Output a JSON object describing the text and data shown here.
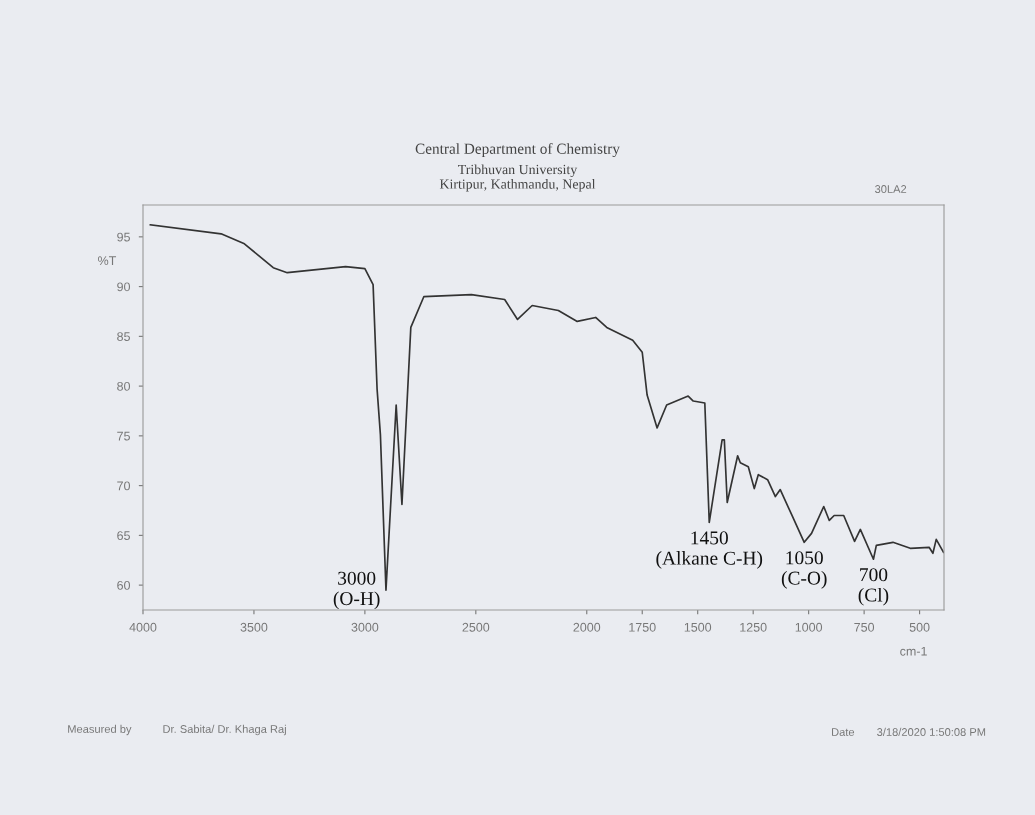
{
  "chart_data": {
    "type": "line",
    "title": "Central Department of Chemistry",
    "subtitle": "Tribhuvan University\nKirtipur, Kathmandu, Nepal",
    "xlabel": "cm-1",
    "ylabel": "%T",
    "series": [
      {
        "color": "#333333",
        "x": [
          3967,
          3648,
          3543,
          3413,
          3350,
          3087,
          3000,
          2963,
          2945,
          2930,
          2905,
          2859,
          2833,
          2793,
          2734,
          2520,
          2370,
          2312,
          2246,
          2128,
          2043,
          1960,
          1910,
          1793,
          1750,
          1728,
          1683,
          1640,
          1543,
          1520,
          1468,
          1448,
          1390,
          1380,
          1367,
          1320,
          1308,
          1272,
          1245,
          1227,
          1185,
          1150,
          1128,
          1075,
          1020,
          987,
          932,
          907,
          885,
          842,
          793,
          767,
          708,
          695,
          620,
          542,
          457,
          440,
          425,
          392
        ],
        "values": [
          96.2,
          95.3,
          94.3,
          91.9,
          91.4,
          92.0,
          91.8,
          90.2,
          79.7,
          75.1,
          59.5,
          78.1,
          68.1,
          85.9,
          89.0,
          89.2,
          88.7,
          86.7,
          88.1,
          87.6,
          86.5,
          86.9,
          85.9,
          84.6,
          83.4,
          79.1,
          75.8,
          78.1,
          79.0,
          78.5,
          78.3,
          66.3,
          74.6,
          74.6,
          68.3,
          73.0,
          72.3,
          71.9,
          69.7,
          71.1,
          70.6,
          68.9,
          69.6,
          67.0,
          64.3,
          65.2,
          67.9,
          66.5,
          67.0,
          67.0,
          64.4,
          65.6,
          62.6,
          64.0,
          64.3,
          63.7,
          63.8,
          63.2,
          64.6,
          63.3
        ]
      }
    ],
    "xlim": [
      4000,
      390
    ],
    "ylim": [
      57.5,
      98.2
    ],
    "xticks": [
      4000,
      3500,
      3000,
      2500,
      2000,
      1750,
      1500,
      1250,
      1000,
      750,
      500
    ],
    "yticks": [
      60,
      65,
      70,
      75,
      80,
      85,
      90,
      95
    ],
    "grid": false,
    "legend": false,
    "marker": "none",
    "line_style": "solid",
    "annotations": [
      {
        "text": "3000\n(O-H)",
        "x": 2905,
        "y": 59.5
      },
      {
        "text": "1450\n(Alkane C-H)",
        "x": 1448,
        "y": 66.3
      },
      {
        "text": "1050\n(C-O)",
        "x": 1020,
        "y": 64.3
      },
      {
        "text": "700\n(Cl)",
        "x": 708,
        "y": 62.6
      },
      "30LA2",
      "Measured by",
      "Dr. Sabita/ Dr. Khaga Raj",
      "Date",
      "3/18/2020 1:50:08 PM"
    ]
  }
}
